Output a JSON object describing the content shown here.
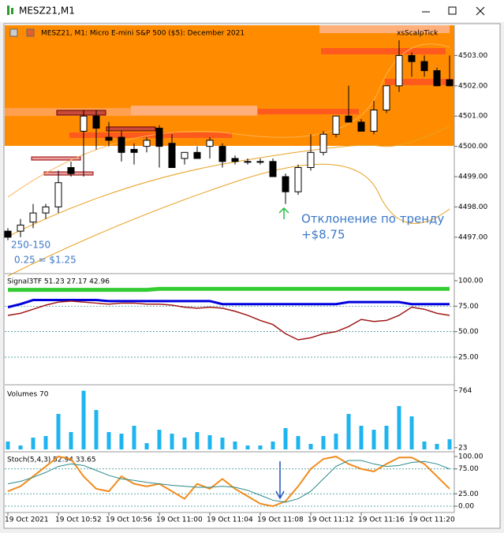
{
  "window_title": "MESZ21,M1",
  "chart_data": [
    {
      "type": "candlestick",
      "title": "MESZ21, M1:  Micro E-mini S&P 500 ($5): December 2021",
      "indicator": "xsScalpTick",
      "annotations": [
        "Отклонение по тренду",
        "+$8.75",
        "250-150",
        "0.25 = $1.25"
      ],
      "open": [
        4497.2,
        4497.2,
        4497.5,
        4497.8,
        4498.0,
        4499.3,
        4500.5,
        4501.0,
        4500.3,
        4500.3,
        4499.9,
        4500.0,
        4500.6,
        4500.1,
        4499.6,
        4499.8,
        4500.0,
        4500.0,
        4499.6,
        4499.5,
        4499.5,
        4499.5,
        4499.0,
        4498.5,
        4499.3,
        4499.8,
        4500.4,
        4501.0,
        4500.8,
        4500.5,
        4501.2,
        4502.0,
        4503.0,
        4502.8,
        4502.5,
        4502.2
      ],
      "high": [
        4497.3,
        4497.6,
        4498.1,
        4498.1,
        4499.2,
        4499.5,
        4501.2,
        4501.2,
        4500.8,
        4500.5,
        4500.1,
        4500.3,
        4500.7,
        4500.4,
        4499.8,
        4500.0,
        4500.3,
        4500.1,
        4499.7,
        4499.6,
        4499.6,
        4499.6,
        4499.1,
        4499.4,
        4500.4,
        4500.5,
        4501.0,
        4502.0,
        4500.9,
        4501.5,
        4502.0,
        4503.5,
        4503.1,
        4503.0,
        4502.6,
        4503.0
      ],
      "low": [
        4496.9,
        4497.0,
        4497.3,
        4497.6,
        4497.8,
        4499.0,
        4499.0,
        4499.9,
        4500.0,
        4499.5,
        4499.4,
        4499.8,
        4499.3,
        4499.3,
        4499.4,
        4499.6,
        4499.6,
        4499.3,
        4499.4,
        4499.4,
        4499.4,
        4499.0,
        4498.1,
        4498.4,
        4499.2,
        4499.7,
        4500.3,
        4500.8,
        4500.5,
        4500.4,
        4501.1,
        4501.8,
        4502.3,
        4502.3,
        4502.0,
        4502.0
      ],
      "close": [
        4497.0,
        4497.4,
        4497.8,
        4498.0,
        4498.8,
        4499.1,
        4501.0,
        4500.6,
        4500.2,
        4499.8,
        4499.8,
        4500.2,
        4500.0,
        4499.3,
        4499.8,
        4499.6,
        4500.2,
        4499.5,
        4499.5,
        4499.5,
        4499.5,
        4499.0,
        4498.5,
        4499.3,
        4499.8,
        4500.4,
        4501.0,
        4500.8,
        4500.5,
        4501.2,
        4502.0,
        4503.0,
        4502.8,
        4502.5,
        4502.0,
        4502.0
      ],
      "up_color": "#ffffff",
      "down_color": "#000000",
      "ylim": [
        4495.85,
        4504.0
      ],
      "yticks": [
        {
          "value": 4497,
          "label": "4497.00"
        },
        {
          "value": 4498,
          "label": "4498.00"
        },
        {
          "value": 4499,
          "label": "4499.00"
        },
        {
          "value": 4500,
          "label": "4500.00"
        },
        {
          "value": 4501,
          "label": "4501.00"
        },
        {
          "value": 4502,
          "label": "4502.00"
        },
        {
          "value": 4503,
          "label": "4503.00"
        }
      ]
    },
    {
      "type": "line",
      "title": "Signal3TF 51.23 27.17 42.96",
      "series": [
        {
          "color": "#33cc33",
          "values": [
            91,
            91,
            91,
            91,
            91,
            91,
            91,
            91,
            91,
            91,
            91,
            91,
            92,
            92,
            92,
            92,
            92,
            92,
            92,
            92,
            92,
            92,
            92,
            92,
            92,
            92,
            92,
            92,
            92,
            92,
            92,
            92,
            92,
            92,
            92,
            92
          ]
        },
        {
          "color": "#0000dd",
          "values": [
            74,
            77,
            81,
            81,
            81,
            81,
            81,
            81,
            80,
            80,
            80,
            80,
            80,
            80,
            80,
            80,
            80,
            77,
            77,
            77,
            77,
            77,
            77,
            77,
            77,
            77,
            77,
            79,
            79,
            79,
            79,
            79,
            77,
            77,
            77,
            77
          ]
        },
        {
          "color": "#a01818",
          "values": [
            66,
            68,
            72,
            76,
            79,
            80,
            79,
            78,
            77,
            78,
            78,
            77,
            77,
            76,
            74,
            73,
            74,
            73,
            70,
            66,
            61,
            57,
            48,
            42,
            44,
            48,
            50,
            55,
            62,
            60,
            61,
            66,
            74,
            72,
            68,
            66
          ]
        }
      ],
      "ylim": [
        -1.3,
        105.4
      ],
      "yticks": [
        {
          "value": 25,
          "label": "25.00"
        },
        {
          "value": 50,
          "label": "50.00"
        },
        {
          "value": 75,
          "label": "75.00"
        },
        {
          "value": 100,
          "label": "100.00"
        }
      ],
      "grid": true
    },
    {
      "type": "bar",
      "title": "Volumes 70",
      "values": [
        103,
        51,
        154,
        174,
        462,
        226,
        764,
        513,
        226,
        205,
        308,
        82,
        256,
        205,
        154,
        226,
        185,
        154,
        103,
        51,
        51,
        103,
        277,
        174,
        72,
        174,
        205,
        462,
        308,
        256,
        308,
        564,
        430,
        103,
        72,
        133
      ],
      "color": "#1eb4f0",
      "ylim": [
        0,
        800
      ],
      "yticks": [
        23,
        764
      ]
    },
    {
      "type": "line",
      "title": "Stoch(5,4,3) 52.94 33.65",
      "series": [
        {
          "color": "#f08c1e",
          "values": [
            30,
            40,
            60,
            80,
            100,
            95,
            60,
            35,
            30,
            60,
            45,
            40,
            45,
            30,
            15,
            45,
            35,
            55,
            35,
            20,
            5,
            0,
            10,
            40,
            75,
            95,
            100,
            85,
            75,
            70,
            85,
            98,
            98,
            85,
            60,
            35
          ]
        },
        {
          "color": "#2a8a8a",
          "values": [
            45,
            50,
            58,
            68,
            80,
            85,
            82,
            72,
            62,
            55,
            52,
            48,
            45,
            42,
            40,
            38,
            38,
            40,
            38,
            32,
            22,
            12,
            8,
            15,
            30,
            55,
            80,
            92,
            92,
            85,
            80,
            82,
            88,
            90,
            85,
            75
          ]
        }
      ],
      "ylim": [
        -9.5,
        106.3
      ],
      "yticks": [
        {
          "value": 0,
          "label": "0.00"
        },
        {
          "value": 25,
          "label": "25.00"
        },
        {
          "value": 75,
          "label": "75.00"
        },
        {
          "value": 100,
          "label": "100.00"
        }
      ],
      "grid": true,
      "xticks": [
        {
          "value": 0,
          "label": "19 Oct 2021"
        },
        {
          "value": 4,
          "label": "19 Oct 10:52"
        },
        {
          "value": 8,
          "label": "19 Oct 10:56"
        },
        {
          "value": 12,
          "label": "19 Oct 11:00"
        },
        {
          "value": 16,
          "label": "19 Oct 11:04"
        },
        {
          "value": 20,
          "label": "19 Oct 11:08"
        },
        {
          "value": 24,
          "label": "19 Oct 11:12"
        },
        {
          "value": 28,
          "label": "19 Oct 11:16"
        },
        {
          "value": 32,
          "label": "19 Oct 11:20"
        }
      ]
    }
  ]
}
